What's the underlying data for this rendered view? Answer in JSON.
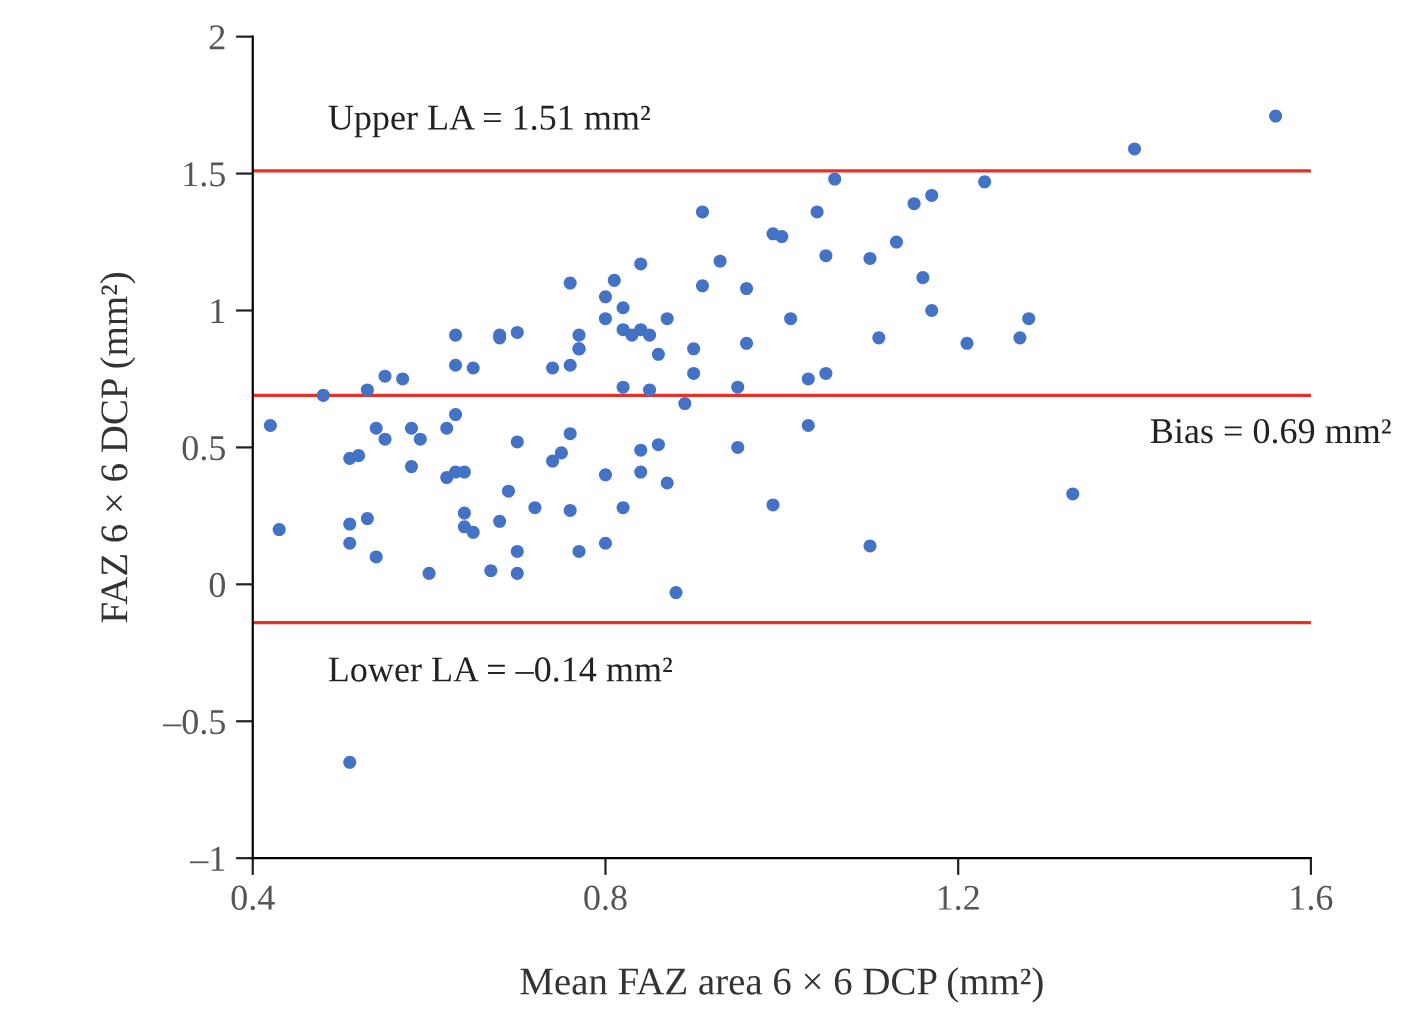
{
  "chart_data": {
    "type": "scatter",
    "xlabel": "Mean FAZ area 6 × 6 DCP (mm²)",
    "ylabel": "FAZ 6 × 6 DCP (mm²)",
    "xlim": [
      0.4,
      1.6
    ],
    "xticks": [
      0.4,
      0.8,
      1.2,
      1.6
    ],
    "ylim": [
      -1,
      2
    ],
    "yticks": [
      {
        "value": -1,
        "label": "–1"
      },
      {
        "value": -0.5,
        "label": "–0.5"
      },
      0,
      0.5,
      1,
      1.5,
      2
    ],
    "grid": false,
    "marker": "circle",
    "ref_lines": [
      {
        "axis": "y",
        "value": 1.51,
        "label": "Upper LA = 1.51 mm²",
        "color": "#e8302a"
      },
      {
        "axis": "y",
        "value": 0.69,
        "label": "Bias = 0.69 mm²",
        "color": "#e8302a"
      },
      {
        "axis": "y",
        "value": -0.14,
        "label": "Lower LA = –0.14 mm²",
        "color": "#e8302a"
      }
    ],
    "series": [
      {
        "color": "#4472c4",
        "x": [
          0.42,
          0.43,
          0.48,
          0.51,
          0.52,
          0.51,
          0.51,
          0.53,
          0.54,
          0.53,
          0.54,
          0.55,
          0.55,
          0.57,
          0.58,
          0.58,
          0.59,
          0.6,
          0.62,
          0.62,
          0.63,
          0.63,
          0.63,
          0.63,
          0.64,
          0.64,
          0.64,
          0.65,
          0.65,
          0.67,
          0.68,
          0.68,
          0.68,
          0.69,
          0.7,
          0.7,
          0.7,
          0.7,
          0.72,
          0.74,
          0.74,
          0.75,
          0.76,
          0.76,
          0.76,
          0.77,
          0.77,
          0.77,
          0.76,
          0.77,
          0.8,
          0.8,
          0.8,
          0.8,
          0.81,
          0.82,
          0.82,
          0.82,
          0.82,
          0.83,
          0.84,
          0.84,
          0.84,
          0.84,
          0.85,
          0.85,
          0.86,
          0.86,
          0.87,
          0.87,
          0.88,
          0.89,
          0.9,
          0.9,
          0.91,
          0.91,
          0.93,
          0.95,
          0.95,
          0.96,
          0.96,
          0.99,
          0.99,
          1.0,
          1.01,
          1.03,
          1.03,
          1.04,
          1.05,
          1.05,
          1.06,
          1.1,
          1.11,
          1.13,
          1.15,
          1.17,
          1.16,
          1.17,
          1.1,
          1.21,
          1.23,
          1.27,
          1.28,
          1.33,
          1.4,
          1.56,
          0.51
        ],
        "values": [
          0.58,
          0.2,
          0.69,
          0.46,
          0.47,
          0.15,
          0.22,
          0.71,
          0.57,
          0.24,
          0.1,
          0.76,
          0.53,
          0.75,
          0.57,
          0.43,
          0.53,
          0.04,
          0.57,
          0.39,
          0.41,
          0.91,
          0.8,
          0.62,
          0.41,
          0.26,
          0.21,
          0.79,
          0.19,
          0.05,
          0.23,
          0.91,
          0.9,
          0.34,
          0.52,
          0.12,
          0.92,
          0.04,
          0.28,
          0.79,
          0.45,
          0.48,
          0.55,
          0.8,
          1.1,
          0.91,
          0.86,
          0.86,
          0.27,
          0.12,
          0.4,
          0.97,
          0.15,
          1.05,
          1.11,
          1.01,
          0.93,
          0.72,
          0.28,
          0.91,
          1.17,
          0.41,
          0.49,
          0.93,
          0.91,
          0.71,
          0.84,
          0.51,
          0.37,
          0.97,
          -0.03,
          0.66,
          0.86,
          0.77,
          1.36,
          1.09,
          1.18,
          0.72,
          0.5,
          1.08,
          0.88,
          0.29,
          1.28,
          1.27,
          0.97,
          0.75,
          0.58,
          1.36,
          1.2,
          0.77,
          1.48,
          1.19,
          0.9,
          1.25,
          1.39,
          1.42,
          1.12,
          1.0,
          0.14,
          0.88,
          1.47,
          0.9,
          0.97,
          0.33,
          1.59,
          1.71,
          -0.65
        ]
      }
    ]
  }
}
